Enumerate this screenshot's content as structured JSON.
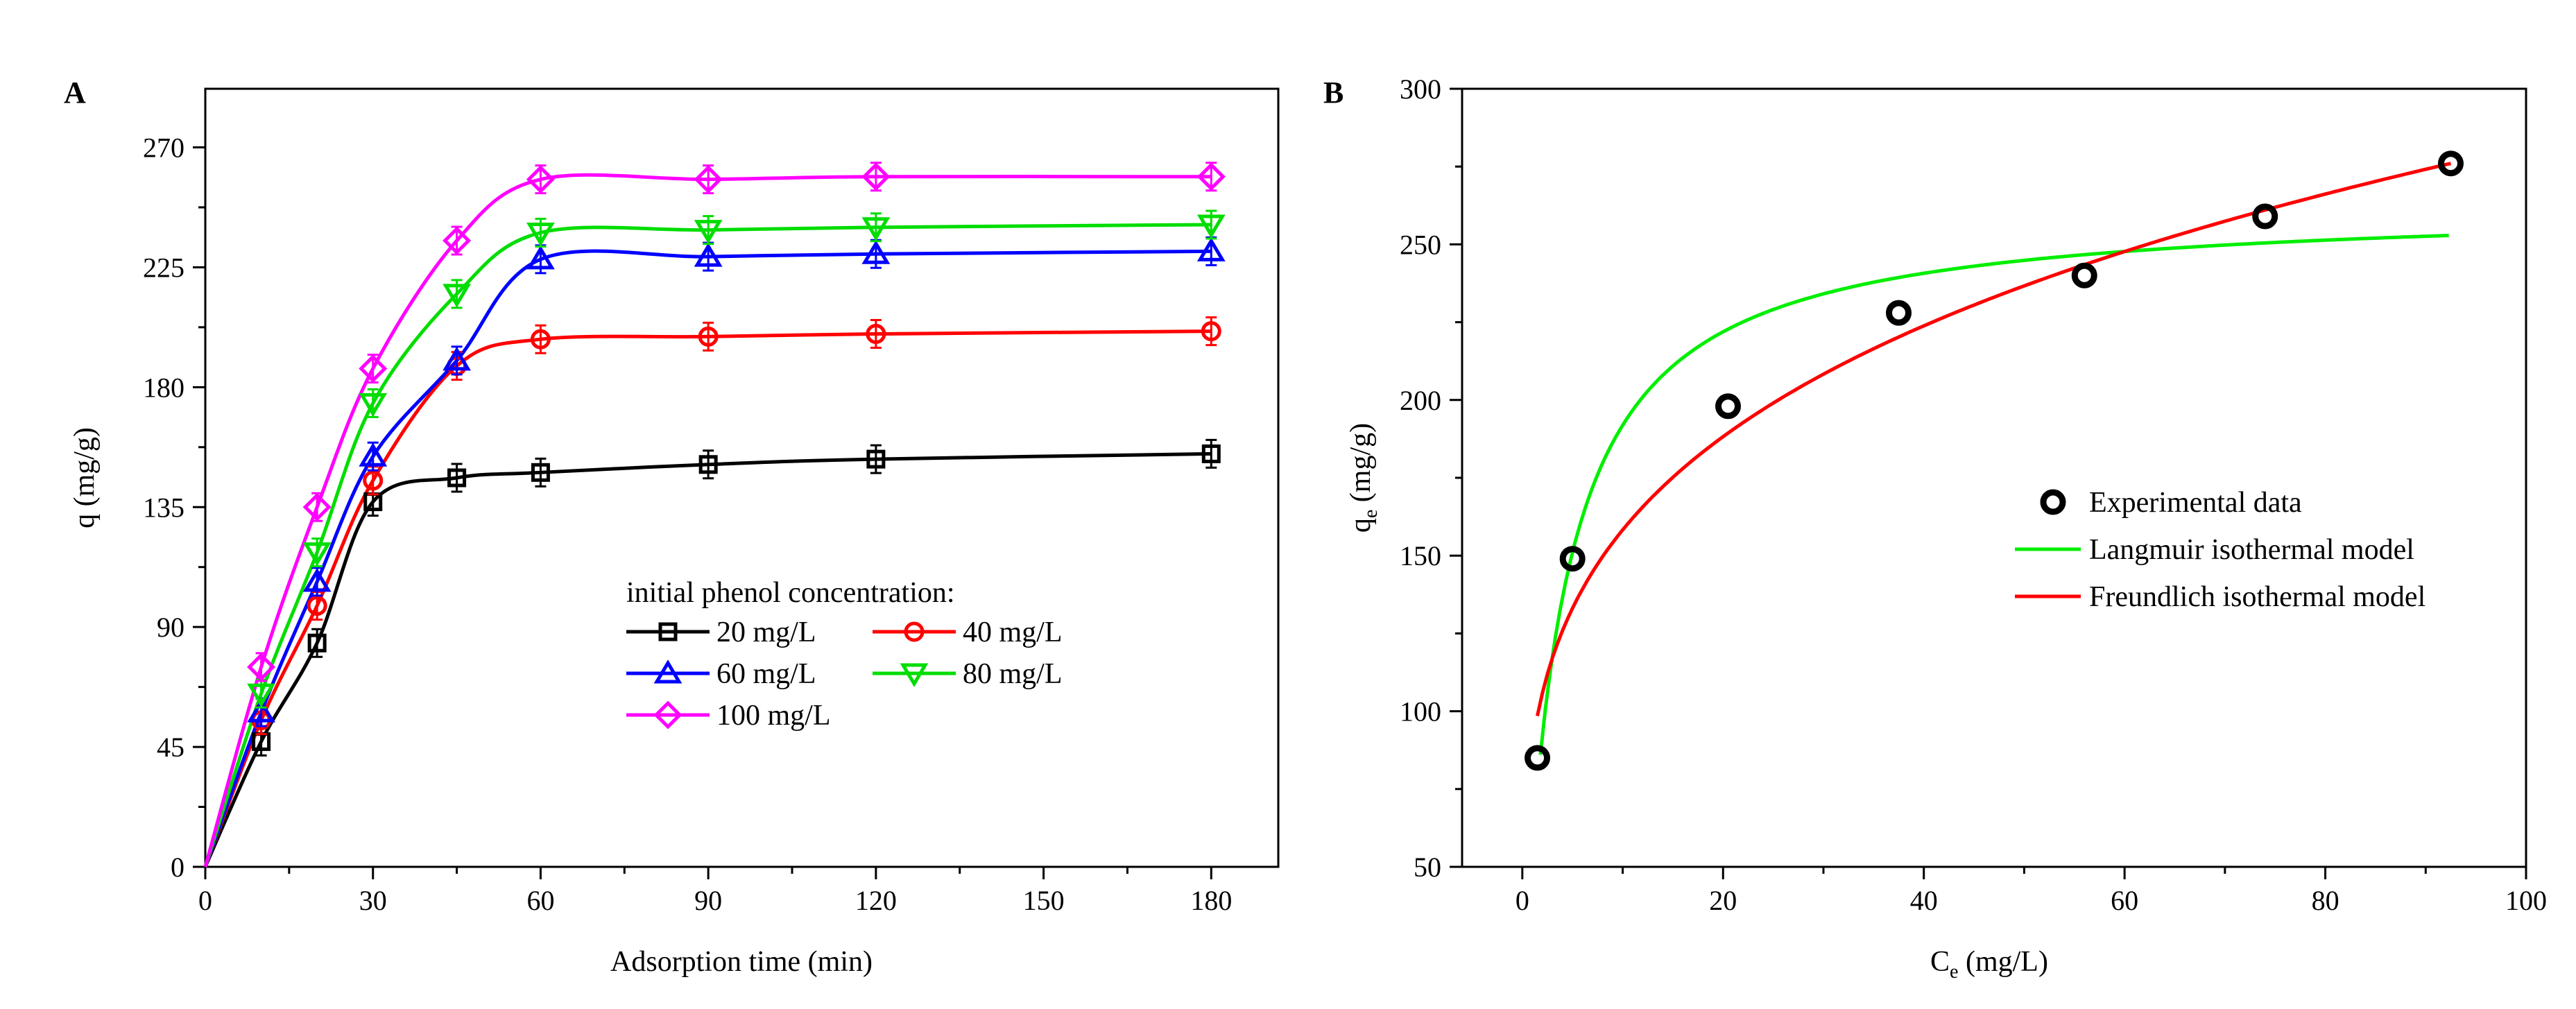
{
  "chart_data": [
    {
      "panel": "A",
      "type": "line",
      "xlabel": "Adsorption time (min)",
      "ylabel": "q (mg/g)",
      "xlim": [
        0,
        192
      ],
      "ylim": [
        0,
        292
      ],
      "xticks": [
        0,
        30,
        60,
        90,
        120,
        150,
        180
      ],
      "yticks": [
        0,
        45,
        90,
        135,
        180,
        225,
        270
      ],
      "x": [
        0,
        10,
        20,
        30,
        45,
        60,
        90,
        120,
        180
      ],
      "legend_title": "initial  phenol concentration:",
      "series": [
        {
          "name": "20 mg/L",
          "marker": "square",
          "color": "#000000",
          "values": [
            0,
            47,
            84,
            137,
            146,
            148,
            151,
            153,
            155
          ]
        },
        {
          "name": "40 mg/L",
          "marker": "circle",
          "color": "#ff0000",
          "values": [
            0,
            55,
            98,
            145,
            188,
            198,
            199,
            200,
            201
          ]
        },
        {
          "name": "60 mg/L",
          "marker": "triangle-up",
          "color": "#0000ff",
          "values": [
            0,
            58,
            107,
            154,
            190,
            228,
            229,
            230,
            231
          ]
        },
        {
          "name": "80 mg/L",
          "marker": "triangle-down",
          "color": "#00dd00",
          "values": [
            0,
            65,
            118,
            174,
            215,
            238,
            239,
            240,
            241
          ]
        },
        {
          "name": "100 mg/L",
          "marker": "diamond",
          "color": "#ff00ff",
          "values": [
            0,
            75,
            135,
            187,
            235,
            258,
            258,
            259,
            259
          ]
        }
      ]
    },
    {
      "panel": "B",
      "type": "scatter",
      "xlabel": "C",
      "xlabel_sub": "e",
      "xlabel_unit": " (mg/L)",
      "ylabel": "q",
      "ylabel_sub": "e",
      "ylabel_unit": " (mg/g)",
      "xlim": [
        -6,
        100
      ],
      "ylim": [
        50,
        300
      ],
      "xticks": [
        0,
        20,
        40,
        60,
        80,
        100
      ],
      "yticks": [
        50,
        100,
        150,
        200,
        250,
        300
      ],
      "experimental": {
        "name": "Experimental data",
        "x": [
          1.5,
          5.0,
          20.5,
          37.5,
          56.0,
          74.0,
          92.5
        ],
        "y": [
          85,
          149,
          198,
          228,
          240,
          259,
          276
        ]
      },
      "langmuir": {
        "name": "Langmuir isothermal model",
        "color": "#00ee00",
        "qmax": 263,
        "KL": 0.27,
        "x_range": [
          1.8,
          92.5
        ]
      },
      "freundlich": {
        "name": "Freundlich isothermal model",
        "color": "#ff0000",
        "KF": 89,
        "n_inv": 0.25,
        "x_range": [
          1.5,
          92.5
        ]
      }
    }
  ]
}
